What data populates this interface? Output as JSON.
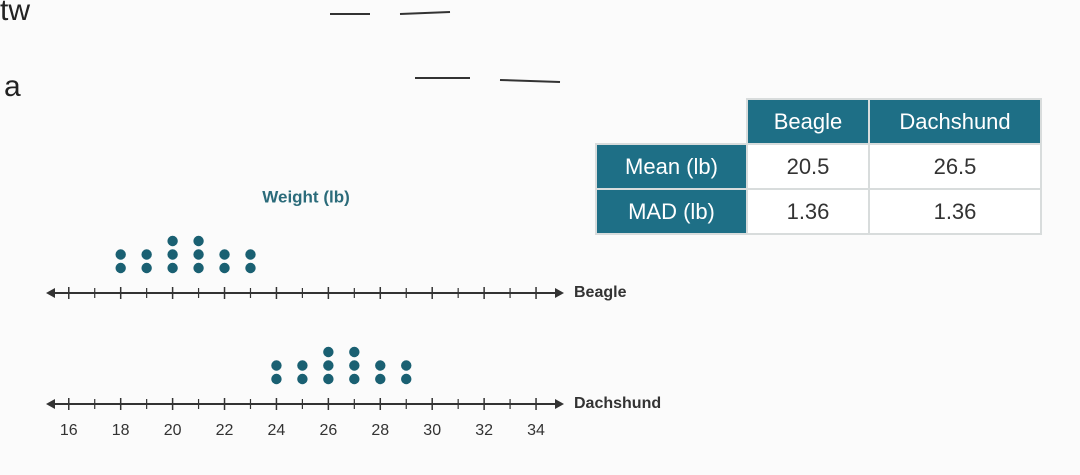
{
  "fragments": [
    "tw",
    "a"
  ],
  "chart_data": {
    "type": "dot",
    "title": "Weight (lb)",
    "series": [
      {
        "name": "Beagle",
        "color": "#1a6072",
        "values": [
          18,
          18,
          19,
          19,
          20,
          20,
          20,
          21,
          21,
          21,
          22,
          22,
          23,
          23
        ]
      },
      {
        "name": "Dachshund",
        "color": "#1a6072",
        "values": [
          24,
          24,
          25,
          25,
          26,
          26,
          26,
          27,
          27,
          27,
          28,
          28,
          29,
          29
        ]
      }
    ],
    "xlim": [
      15.2,
      35
    ],
    "xticks": [
      16,
      18,
      20,
      22,
      24,
      26,
      28,
      30,
      32,
      34
    ],
    "minor_xticks": [
      17,
      19,
      21,
      23,
      25,
      27,
      29,
      31,
      33
    ]
  },
  "table": {
    "columns": [
      "Beagle",
      "Dachshund"
    ],
    "rows": [
      [
        "Mean (lb)",
        "20.5",
        "26.5"
      ],
      [
        "MAD (lb)",
        "1.36",
        "1.36"
      ]
    ]
  }
}
